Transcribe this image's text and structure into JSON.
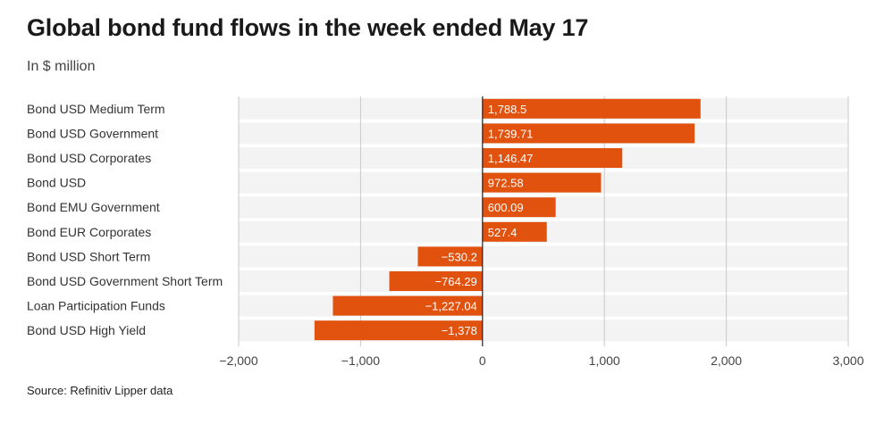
{
  "title": "Global bond fund flows in the week ended May 17",
  "subtitle": "In $ million",
  "source": "Source: Refinitiv Lipper data",
  "colors": {
    "bar": "#e2520f",
    "band": "#f3f3f3",
    "grid": "#c9c9c9",
    "zero": "#222222"
  },
  "chart_data": {
    "type": "bar",
    "orientation": "horizontal",
    "categories": [
      "Bond USD Medium Term",
      "Bond USD Government",
      "Bond USD Corporates",
      "Bond USD",
      "Bond EMU Government",
      "Bond EUR Corporates",
      "Bond USD Short Term",
      "Bond USD Government Short Term",
      "Loan Participation Funds",
      "Bond USD High Yield"
    ],
    "values": [
      1788.5,
      1739.71,
      1146.47,
      972.58,
      600.09,
      527.4,
      -530.2,
      -764.29,
      -1227.04,
      -1378
    ],
    "value_labels": [
      "1,788.5",
      "1,739.71",
      "1,146.47",
      "972.58",
      "600.09",
      "527.4",
      "−530.2",
      "−764.29",
      "−1,227.04",
      "−1,378"
    ],
    "xlim": [
      -2000,
      3000
    ],
    "xticks": [
      -2000,
      -1000,
      0,
      1000,
      2000,
      3000
    ],
    "xtick_labels": [
      "−2,000",
      "−1,000",
      "0",
      "1,000",
      "2,000",
      "3,000"
    ],
    "grid": true
  }
}
